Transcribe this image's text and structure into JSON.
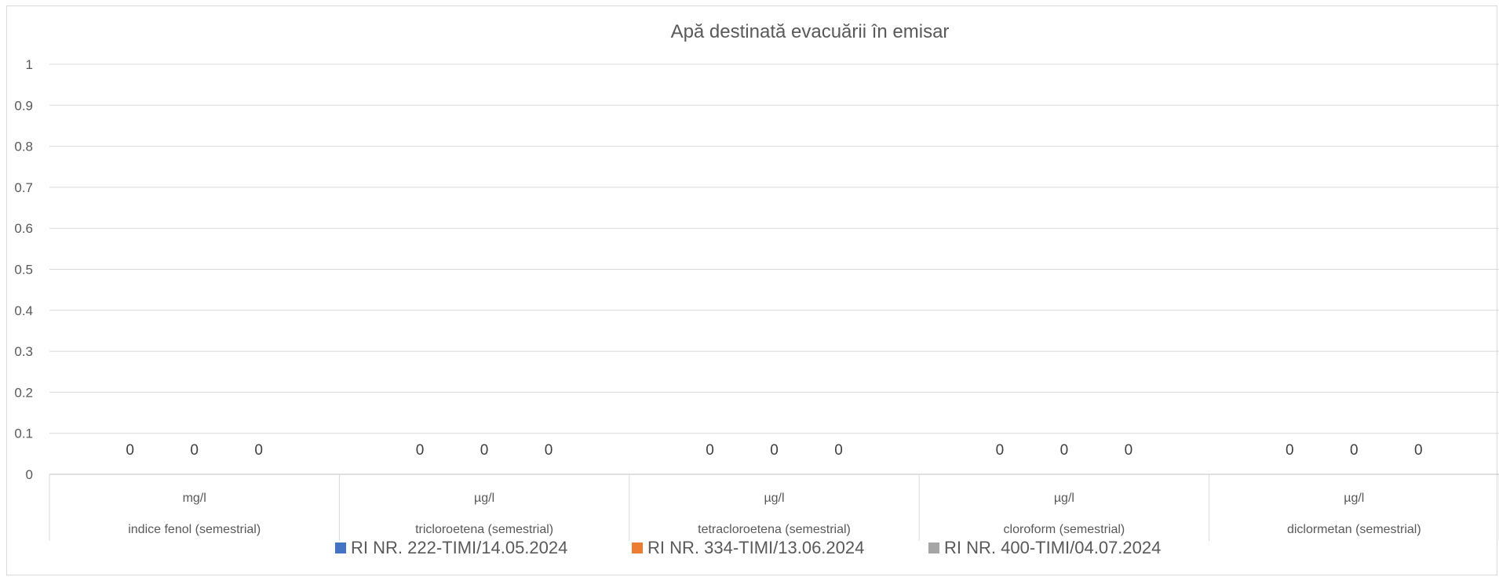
{
  "chart_data": {
    "type": "bar",
    "title": "Apă destinată evacuării în emisar",
    "ylim": [
      0,
      1
    ],
    "yticks": [
      "0",
      "0.1",
      "0.2",
      "0.3",
      "0.4",
      "0.5",
      "0.6",
      "0.7",
      "0.8",
      "0.9",
      "1"
    ],
    "grid": true,
    "legend_position": "bottom",
    "categories": [
      {
        "unit": "mg/l",
        "name": "indice fenol (semestrial)"
      },
      {
        "unit": "µg/l",
        "name": "tricloroetena (semestrial)"
      },
      {
        "unit": "µg/l",
        "name": "tetracloroetena (semestrial)"
      },
      {
        "unit": "µg/l",
        "name": "cloroform (semestrial)"
      },
      {
        "unit": "µg/l",
        "name": "diclormetan (semestrial)"
      }
    ],
    "series": [
      {
        "name": "RI NR. 222-TIMI/14.05.2024",
        "color": "#4472C4",
        "values": [
          0,
          0,
          0,
          0,
          0
        ]
      },
      {
        "name": "RI NR. 334-TIMI/13.06.2024",
        "color": "#ED7D31",
        "values": [
          0,
          0,
          0,
          0,
          0
        ]
      },
      {
        "name": "RI NR. 400-TIMI/04.07.2024",
        "color": "#A5A5A5",
        "values": [
          0,
          0,
          0,
          0,
          0
        ]
      }
    ],
    "data_label_text": "0"
  }
}
